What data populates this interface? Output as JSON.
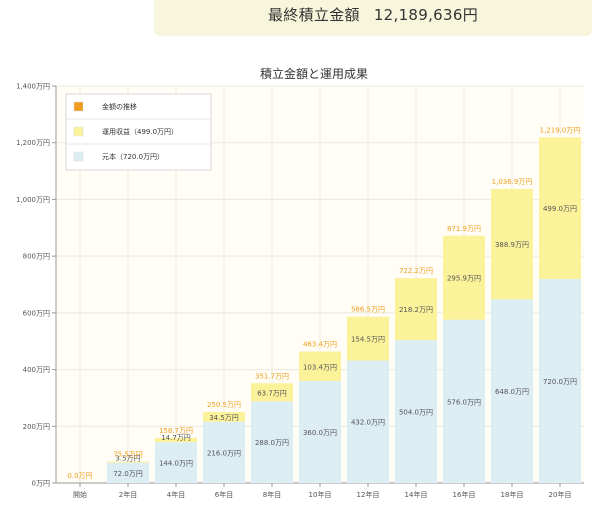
{
  "summary": {
    "label": "最終積立金額",
    "value": "12,189,636円"
  },
  "colors": {
    "principal": "#dcedf4",
    "gain": "#fcf29a",
    "transition": "#f29c1f",
    "total_label": "#f0a020",
    "plot_bg": "#fffdf6",
    "grid": "#ece9dc"
  },
  "chart_data": {
    "type": "bar",
    "stacked": true,
    "title": "積立金額と運用成果",
    "categories": [
      "開始",
      "2年目",
      "4年目",
      "6年目",
      "8年目",
      "10年目",
      "12年目",
      "14年目",
      "16年目",
      "18年目",
      "20年目"
    ],
    "series": [
      {
        "name": "元本（720.0万円）",
        "values": [
          0,
          72.0,
          144.0,
          216.0,
          288.0,
          360.0,
          432.0,
          504.0,
          576.0,
          648.0,
          720.0
        ],
        "labels": [
          "",
          "72.0万円",
          "144.0万円",
          "216.0万円",
          "288.0万円",
          "360.0万円",
          "432.0万円",
          "504.0万円",
          "576.0万円",
          "648.0万円",
          "720.0万円"
        ]
      },
      {
        "name": "運用収益（499.0万円）",
        "values": [
          0,
          3.5,
          14.7,
          34.5,
          63.7,
          103.4,
          154.5,
          218.2,
          295.9,
          388.9,
          499.0
        ],
        "labels": [
          "",
          "3.5万円",
          "14.7万円",
          "34.5万円",
          "63.7万円",
          "103.4万円",
          "154.5万円",
          "218.2万円",
          "295.9万円",
          "388.9万円",
          "499.0万円"
        ]
      }
    ],
    "totals": [
      0.0,
      75.5,
      158.7,
      250.5,
      351.7,
      463.4,
      586.5,
      722.2,
      871.9,
      1036.9,
      1219.0
    ],
    "total_labels": [
      "0.0万円",
      "75.5万円",
      "158.7万円",
      "250.5万円",
      "351.7万円",
      "463.4万円",
      "586.5万円",
      "722.2万円",
      "871.9万円",
      "1,036.9万円",
      "1,219.0万円"
    ],
    "legend": [
      "金額の推移",
      "運用収益（499.0万円）",
      "元本（720.0万円）"
    ],
    "legend_position": "top-left",
    "ylim": [
      0,
      1400
    ],
    "yticks": [
      0,
      200,
      400,
      600,
      800,
      1000,
      1200,
      1400
    ],
    "ytick_labels": [
      "0万円",
      "200万円",
      "400万円",
      "600万円",
      "800万円",
      "1,000万円",
      "1,200万円",
      "1,400万円"
    ],
    "grid": true
  }
}
